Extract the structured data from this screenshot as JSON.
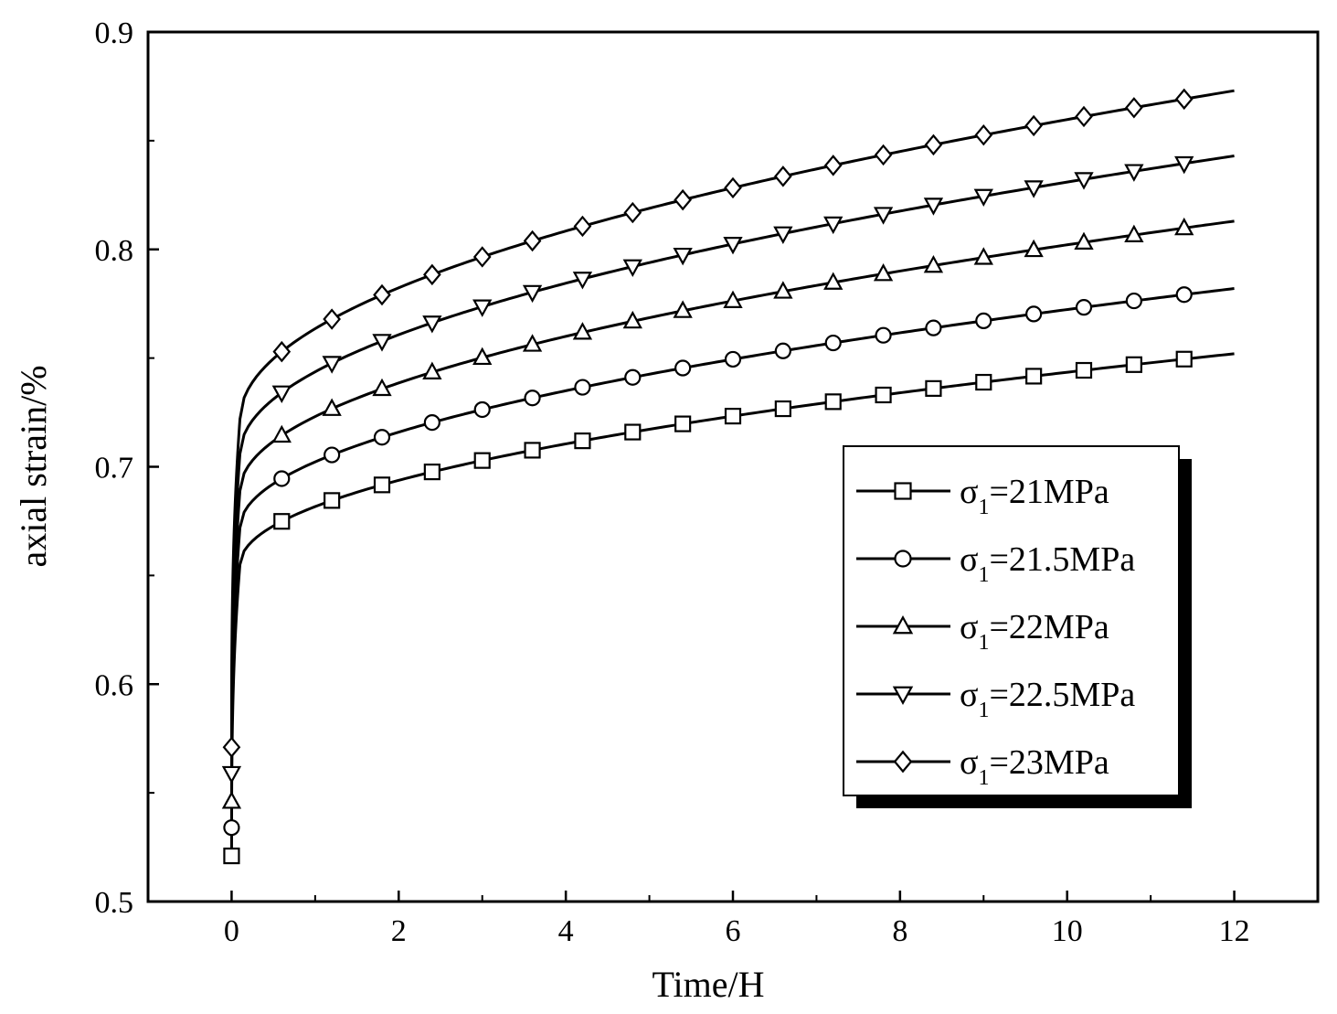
{
  "chart_data": {
    "type": "line",
    "title": "",
    "xlabel": "Time/H",
    "ylabel": "axial strain/%",
    "xlim": [
      -1,
      13
    ],
    "ylim": [
      0.5,
      0.9
    ],
    "xticks": [
      0,
      2,
      4,
      6,
      8,
      10,
      12
    ],
    "xtick_labels": [
      "0",
      "2",
      "4",
      "6",
      "8",
      "10",
      "12"
    ],
    "yticks": [
      0.5,
      0.6,
      0.7,
      0.8,
      0.9
    ],
    "ytick_labels": [
      "0.5",
      "0.6",
      "0.7",
      "0.8",
      "0.9"
    ],
    "grid": false,
    "legend_position": "center-right",
    "marker_times": [
      0,
      0.6,
      1.2,
      1.8,
      2.4,
      3.0,
      3.6,
      4.2,
      4.8,
      5.4,
      6.0,
      6.6,
      7.2,
      7.8,
      8.4,
      9.0,
      9.6,
      10.2,
      10.8,
      11.4
    ],
    "series": [
      {
        "name": "σ1=21MPa",
        "sigma": "σ",
        "sub": "1",
        "value_text": "=21MPa",
        "marker": "square",
        "initial": 0.521,
        "jump": 0.655,
        "final": 0.752
      },
      {
        "name": "σ1=21.5MPa",
        "sigma": "σ",
        "sub": "1",
        "value_text": "=21.5MPa",
        "marker": "circle",
        "initial": 0.534,
        "jump": 0.672,
        "final": 0.782
      },
      {
        "name": "σ1=22MPa",
        "sigma": "σ",
        "sub": "1",
        "value_text": "=22MPa",
        "marker": "triangle-up",
        "initial": 0.546,
        "jump": 0.689,
        "final": 0.813
      },
      {
        "name": "σ1=22.5MPa",
        "sigma": "σ",
        "sub": "1",
        "value_text": "=22.5MPa",
        "marker": "triangle-down",
        "initial": 0.559,
        "jump": 0.706,
        "final": 0.843
      },
      {
        "name": "σ1=23MPa",
        "sigma": "σ",
        "sub": "1",
        "value_text": "=23MPa",
        "marker": "diamond",
        "initial": 0.571,
        "jump": 0.722,
        "final": 0.873
      }
    ]
  }
}
